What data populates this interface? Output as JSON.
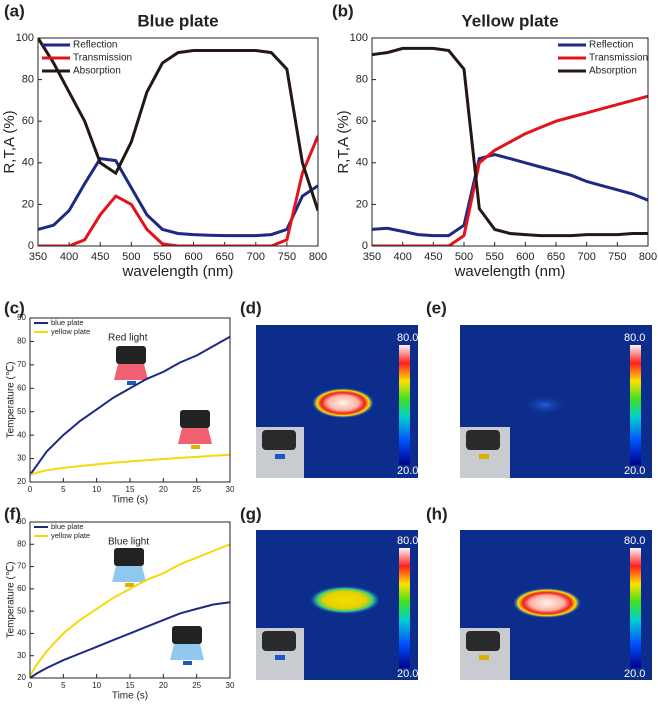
{
  "chart_data": [
    {
      "type": "line",
      "panel_label": "(a)",
      "title": "Blue plate",
      "x_label": "wavelength (nm)",
      "y_label": "R,T,A (%)",
      "x": [
        350,
        375,
        400,
        425,
        450,
        475,
        500,
        525,
        550,
        575,
        600,
        625,
        650,
        675,
        700,
        725,
        750,
        775,
        800
      ],
      "xlim": [
        350,
        800
      ],
      "xticks": [
        350,
        400,
        450,
        500,
        550,
        600,
        650,
        700,
        750,
        800
      ],
      "ylim": [
        0,
        100
      ],
      "yticks": [
        0,
        20,
        40,
        60,
        80,
        100
      ],
      "legend": "upper left",
      "series": [
        {
          "name": "Reflection",
          "color": "#1c2a84",
          "values": [
            8,
            10,
            17,
            30,
            42,
            41,
            28,
            15,
            8,
            6,
            5.5,
            5.2,
            5,
            5,
            5,
            5.5,
            8,
            24,
            29
          ]
        },
        {
          "name": "Transmission",
          "color": "#e3131b",
          "values": [
            0,
            0,
            0,
            3,
            15,
            24,
            20,
            8,
            1,
            0,
            0,
            0,
            0,
            0,
            0,
            0,
            3,
            35,
            53
          ]
        },
        {
          "name": "Absorption",
          "color": "#231815",
          "values": [
            100,
            88,
            74,
            60,
            40,
            35,
            50,
            74,
            88,
            93,
            94,
            94,
            94,
            94,
            94,
            93,
            85,
            40,
            17
          ]
        }
      ]
    },
    {
      "type": "line",
      "panel_label": "(b)",
      "title": "Yellow plate",
      "x_label": "wavelength (nm)",
      "y_label": "R,T,A (%)",
      "x": [
        350,
        375,
        400,
        425,
        450,
        475,
        500,
        525,
        550,
        575,
        600,
        625,
        650,
        675,
        700,
        725,
        750,
        775,
        800
      ],
      "xlim": [
        350,
        800
      ],
      "xticks": [
        350,
        400,
        450,
        500,
        550,
        600,
        650,
        700,
        750,
        800
      ],
      "ylim": [
        0,
        100
      ],
      "yticks": [
        0,
        20,
        40,
        60,
        80,
        100
      ],
      "legend": "upper right",
      "series": [
        {
          "name": "Reflection",
          "color": "#1c2a84",
          "values": [
            8,
            8.5,
            7,
            5.5,
            5,
            5,
            10,
            42,
            44,
            42,
            40,
            38,
            36,
            34,
            31,
            29,
            27,
            25,
            22
          ]
        },
        {
          "name": "Transmission",
          "color": "#e3131b",
          "values": [
            0,
            0,
            0,
            0,
            0,
            0,
            5,
            40,
            46,
            50,
            54,
            57,
            60,
            62,
            64,
            66,
            68,
            70,
            72
          ]
        },
        {
          "name": "Absorption",
          "color": "#231815",
          "values": [
            92,
            93,
            95,
            95,
            95,
            94,
            85,
            18,
            8,
            6,
            5.5,
            5,
            5,
            5,
            5.5,
            5.5,
            5.5,
            6,
            6
          ]
        }
      ]
    },
    {
      "type": "line",
      "panel_label": "(c)",
      "annotation": "Red light",
      "x_label": "Time (s)",
      "y_label": "Temperature (℃)",
      "x": [
        0,
        1,
        2.5,
        5,
        7.5,
        10,
        12.5,
        15,
        17.5,
        20,
        22.5,
        25,
        27.5,
        30
      ],
      "xlim": [
        0,
        30
      ],
      "xticks": [
        0,
        5,
        10,
        15,
        20,
        25,
        30
      ],
      "ylim": [
        20,
        90
      ],
      "yticks": [
        20,
        30,
        40,
        50,
        60,
        70,
        80,
        90
      ],
      "legend": "upper left",
      "series": [
        {
          "name": "blue plate",
          "color": "#1c2a84",
          "values": [
            23,
            27,
            33,
            40,
            46,
            51,
            56,
            60,
            64,
            67,
            71,
            74,
            78,
            82
          ]
        },
        {
          "name": "yellow plate",
          "color": "#f5d90a",
          "values": [
            23,
            24,
            25,
            26,
            26.8,
            27.5,
            28.2,
            28.8,
            29.3,
            29.8,
            30.3,
            30.7,
            31.2,
            31.6
          ]
        }
      ]
    },
    {
      "type": "line",
      "panel_label": "(f)",
      "annotation": "Blue light",
      "x_label": "Time (s)",
      "y_label": "Temperature (℃)",
      "x": [
        0,
        1,
        2.5,
        5,
        7.5,
        10,
        12.5,
        15,
        17.5,
        20,
        22.5,
        25,
        27.5,
        30
      ],
      "xlim": [
        0,
        30
      ],
      "xticks": [
        0,
        5,
        10,
        15,
        20,
        25,
        30
      ],
      "ylim": [
        20,
        90
      ],
      "yticks": [
        20,
        30,
        40,
        50,
        60,
        70,
        80,
        90
      ],
      "legend": "upper left",
      "series": [
        {
          "name": "blue plate",
          "color": "#1c2a84",
          "values": [
            20,
            22,
            24.5,
            28,
            31,
            34,
            37,
            40,
            43,
            46,
            49,
            51,
            53,
            54
          ]
        },
        {
          "name": "yellow plate",
          "color": "#f5d90a",
          "values": [
            21,
            26,
            32,
            40,
            46,
            51,
            56,
            60,
            64,
            67,
            71,
            74,
            77,
            80
          ]
        }
      ]
    }
  ],
  "thermal_images": [
    {
      "label": "(d)",
      "max_label": "80.0",
      "min_label": "20.0"
    },
    {
      "label": "(e)",
      "max_label": "80.0",
      "min_label": "20.0"
    },
    {
      "label": "(g)",
      "max_label": "80.0",
      "min_label": "20.0"
    },
    {
      "label": "(h)",
      "max_label": "80.0",
      "min_label": "20.0"
    }
  ]
}
